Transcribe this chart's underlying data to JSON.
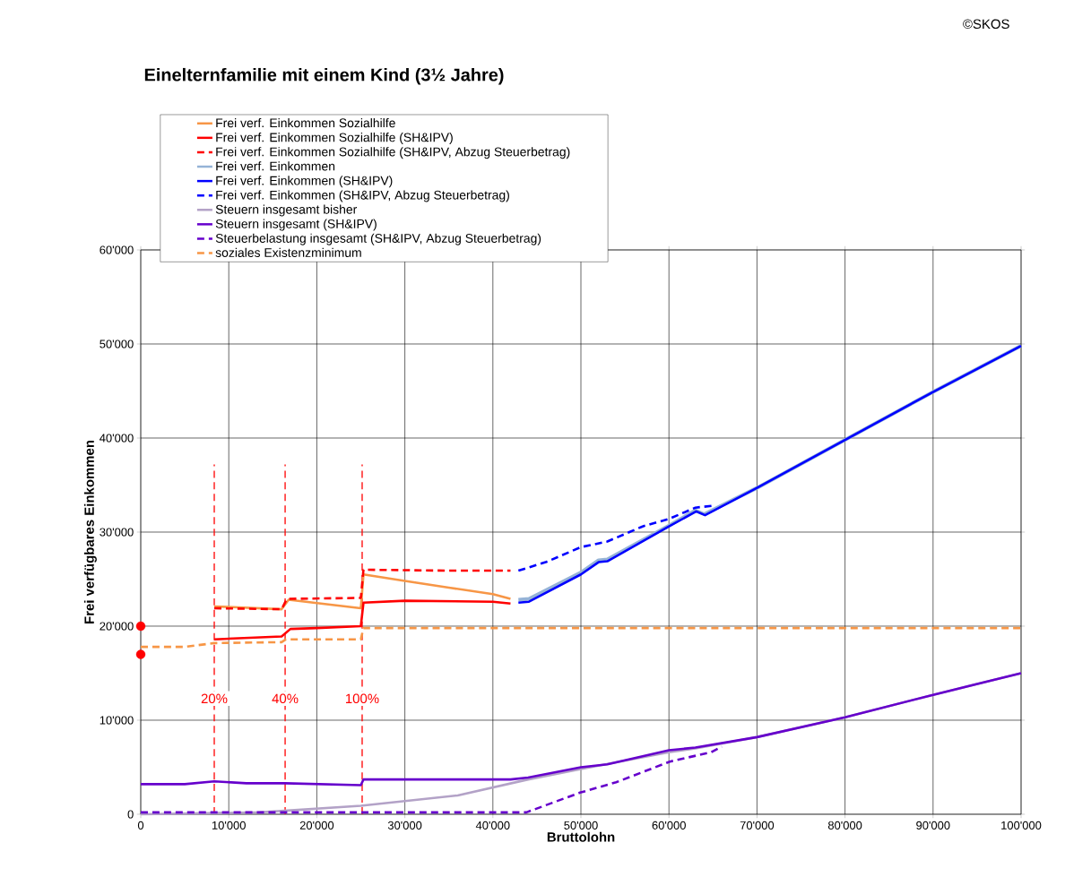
{
  "chart_data": {
    "type": "line",
    "title": "Einelternfamilie mit einem Kind (3½ Jahre)",
    "xlabel": "Bruttolohn",
    "ylabel": "Frei verfügbares Einkommen",
    "annotations": [
      "©SKOS",
      {
        "text": "20%",
        "x": 8350,
        "y": 12300
      },
      {
        "text": "40%",
        "x": 16400,
        "y": 12300
      },
      {
        "text": "100%",
        "x": 25150,
        "y": 12300
      }
    ],
    "xlim": [
      0,
      100000
    ],
    "ylim": [
      0,
      60000
    ],
    "xticks": [
      0,
      {
        "value": 10000,
        "label": "10'000"
      },
      {
        "value": 20000,
        "label": "20'000"
      },
      {
        "value": 30000,
        "label": "30'000"
      },
      {
        "value": 40000,
        "label": "40'000"
      },
      {
        "value": 50000,
        "label": "50'000"
      },
      {
        "value": 60000,
        "label": "60'000"
      },
      {
        "value": 70000,
        "label": "70'000"
      },
      {
        "value": 80000,
        "label": "80'000"
      },
      {
        "value": 90000,
        "label": "90'000"
      },
      {
        "value": 100000,
        "label": "100'000"
      }
    ],
    "yticks": [
      0,
      {
        "value": 10000,
        "label": "10'000"
      },
      {
        "value": 20000,
        "label": "20'000"
      },
      {
        "value": 30000,
        "label": "30'000"
      },
      {
        "value": 40000,
        "label": "40'000"
      },
      {
        "value": 50000,
        "label": "50'000"
      },
      {
        "value": 60000,
        "label": "60'000"
      }
    ],
    "grid": true,
    "legend": "top left",
    "ref_lines": [
      {
        "axis": "x",
        "value": 8350,
        "color": "#ff0000",
        "line_style": "dashed"
      },
      {
        "axis": "x",
        "value": 16400,
        "color": "#ff0000",
        "line_style": "dashed"
      },
      {
        "axis": "x",
        "value": 25150,
        "color": "#ff0000",
        "line_style": "dashed"
      }
    ],
    "series": [
      {
        "name": "Frei verf. Einkommen Sozialhilfe",
        "color": "#f79646",
        "line_style": "solid",
        "x": [
          8350,
          16000,
          16800,
          25000,
          25300,
          30000,
          35000,
          40000,
          42000
        ],
        "values": [
          22100,
          21800,
          22800,
          21900,
          25500,
          24800,
          24100,
          23400,
          22900
        ]
      },
      {
        "name": "Frei verf. Einkommen Sozialhilfe (SH&IPV)",
        "color": "#ff0000",
        "line_style": "solid",
        "x": [
          8350,
          16000,
          17000,
          20000,
          25000,
          25300,
          30000,
          40000,
          42000
        ],
        "values": [
          18600,
          18900,
          19700,
          19800,
          20000,
          22500,
          22700,
          22600,
          22400
        ]
      },
      {
        "name": "Frei verf. Einkommen Sozialhilfe (SH&IPV, Abzug Steuerbetrag)",
        "color": "#ff0000",
        "line_style": "dashed",
        "x": [
          8350,
          16000,
          16600,
          25000,
          25300,
          35000,
          42000
        ],
        "values": [
          21900,
          21800,
          22900,
          23000,
          26000,
          25900,
          25900
        ]
      },
      {
        "name": "Frei verf. Einkommen",
        "color": "#95b3d7",
        "line_style": "solid",
        "x": [
          42900,
          44100,
          50000,
          52000,
          53000,
          60000,
          63000,
          64000,
          70000,
          80000,
          90000,
          100000
        ],
        "values": [
          22800,
          22900,
          25700,
          27000,
          27100,
          30700,
          32300,
          31900,
          34700,
          39800,
          44900,
          49800
        ]
      },
      {
        "name": "Frei verf. Einkommen (SH&IPV)",
        "color": "#0000ff",
        "line_style": "solid",
        "x": [
          42900,
          44100,
          50000,
          52000,
          53000,
          60000,
          63100,
          64100,
          70000,
          80000,
          90000,
          100000
        ],
        "values": [
          22500,
          22600,
          25500,
          26800,
          26900,
          30600,
          32200,
          31800,
          34700,
          39800,
          44900,
          49800
        ]
      },
      {
        "name": "Frei verf. Einkommen (SH&IPV, Abzug Steuerbetrag)",
        "color": "#0000ff",
        "line_style": "dashed",
        "x": [
          42900,
          46000,
          50000,
          53000,
          57000,
          60000,
          63000,
          65000
        ],
        "values": [
          25900,
          26800,
          28400,
          29000,
          30600,
          31400,
          32600,
          32800
        ]
      },
      {
        "name": "Steuern insgesamt bisher",
        "color": "#b3a2c7",
        "line_style": "solid",
        "x": [
          0,
          13500,
          25000,
          36000,
          44000,
          50000,
          60000,
          63000,
          70000,
          80000,
          90000,
          100000
        ],
        "values": [
          0,
          200,
          900,
          2000,
          3700,
          4800,
          6600,
          7000,
          8200,
          10300,
          12700,
          15000
        ]
      },
      {
        "name": "Steuern insgesamt (SH&IPV)",
        "color": "#6600cc",
        "line_style": "solid",
        "x": [
          0,
          5000,
          8350,
          12000,
          16400,
          25000,
          25300,
          42000,
          44000,
          50000,
          53000,
          60000,
          63000,
          70000,
          80000,
          90000,
          100000
        ],
        "values": [
          3200,
          3200,
          3500,
          3300,
          3300,
          3100,
          3700,
          3700,
          3900,
          5000,
          5300,
          6800,
          7100,
          8200,
          10300,
          12700,
          15000
        ]
      },
      {
        "name": "Steuerbelastung insgesamt (SH&IPV, Abzug Steuerbetrag)",
        "color": "#6600cc",
        "line_style": "dashed",
        "x": [
          0,
          43800,
          49900,
          54000,
          60100,
          64800,
          66000
        ],
        "values": [
          200,
          200,
          2300,
          3400,
          5600,
          6600,
          7200
        ]
      },
      {
        "name": "soziales Existenzminimum",
        "color": "#f79646",
        "line_style": "dashed",
        "x": [
          0,
          5000,
          8350,
          16000,
          16500,
          25000,
          25300,
          100000
        ],
        "values": [
          17800,
          17800,
          18200,
          18300,
          18600,
          18600,
          19800,
          19800
        ]
      },
      {
        "type": "scatter",
        "marker": "circle",
        "color": "#ff0000",
        "x": [
          0
        ],
        "values": [
          20000
        ]
      },
      {
        "type": "scatter",
        "marker": "circle",
        "color": "#ff0000",
        "x": [
          0
        ],
        "values": [
          17000
        ]
      }
    ]
  }
}
